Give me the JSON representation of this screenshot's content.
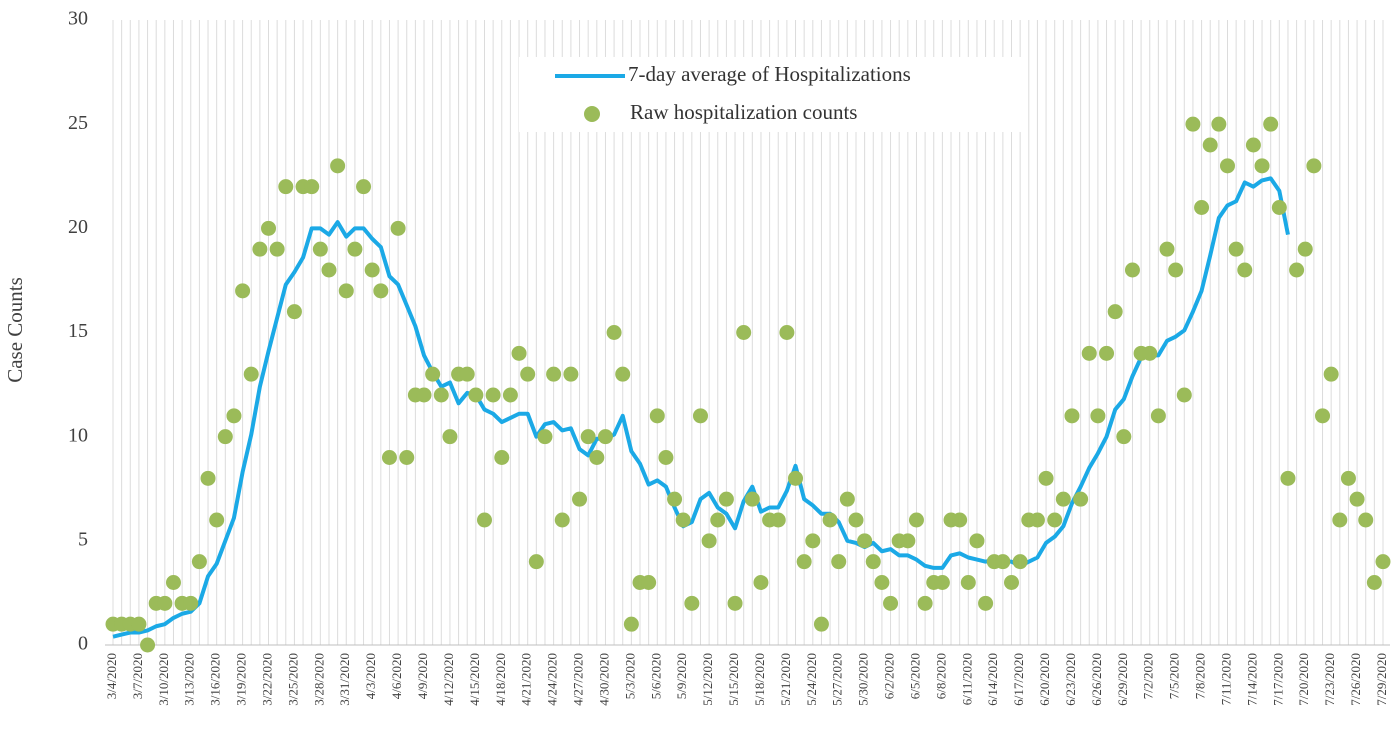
{
  "chart_data": {
    "type": "line",
    "y_axis_label": "Case Counts",
    "categories": [
      "3/4/2020",
      null,
      null,
      "3/7/2020",
      null,
      null,
      "3/10/2020",
      null,
      null,
      "3/13/2020",
      null,
      null,
      "3/16/2020",
      null,
      null,
      "3/19/2020",
      null,
      null,
      "3/22/2020",
      null,
      null,
      "3/25/2020",
      null,
      null,
      "3/28/2020",
      null,
      null,
      "3/31/2020",
      null,
      null,
      "4/3/2020",
      null,
      null,
      "4/6/2020",
      null,
      null,
      "4/9/2020",
      null,
      null,
      "4/12/2020",
      null,
      null,
      "4/15/2020",
      null,
      null,
      "4/18/2020",
      null,
      null,
      "4/21/2020",
      null,
      null,
      "4/24/2020",
      null,
      null,
      "4/27/2020",
      null,
      null,
      "4/30/2020",
      null,
      null,
      "5/3/2020",
      null,
      null,
      "5/6/2020",
      null,
      null,
      "5/9/2020",
      null,
      null,
      "5/12/2020",
      null,
      null,
      "5/15/2020",
      null,
      null,
      "5/18/2020",
      null,
      null,
      "5/21/2020",
      null,
      null,
      "5/24/2020",
      null,
      null,
      "5/27/2020",
      null,
      null,
      "5/30/2020",
      null,
      null,
      "6/2/2020",
      null,
      null,
      "6/5/2020",
      null,
      null,
      "6/8/2020",
      null,
      null,
      "6/11/2020",
      null,
      null,
      "6/14/2020",
      null,
      null,
      "6/17/2020",
      null,
      null,
      "6/20/2020",
      null,
      null,
      "6/23/2020",
      null,
      null,
      "6/26/2020",
      null,
      null,
      "6/29/2020",
      null,
      null,
      "7/2/2020",
      null,
      null,
      "7/5/2020",
      null,
      null,
      "7/8/2020",
      null,
      null,
      "7/11/2020",
      null,
      null,
      "7/14/2020",
      null,
      null,
      "7/17/2020",
      null,
      null,
      "7/20/2020",
      null,
      null,
      "7/23/2020",
      null,
      null,
      "7/26/2020",
      null,
      null,
      "7/29/2020"
    ],
    "series": [
      {
        "name": "7-day average of Hospitalizations",
        "type": "line",
        "color": "#1ba9e6",
        "values": [
          0.4,
          0.5,
          0.6,
          0.6,
          0.7,
          0.9,
          1.0,
          1.3,
          1.5,
          1.6,
          2.0,
          3.3,
          3.9,
          5.0,
          6.1,
          8.3,
          10.1,
          12.4,
          14.1,
          15.7,
          17.3,
          17.9,
          18.6,
          20.0,
          20.0,
          19.7,
          20.3,
          19.6,
          20.0,
          20.0,
          19.5,
          19.1,
          17.7,
          17.3,
          16.3,
          15.3,
          13.9,
          13.1,
          12.4,
          12.6,
          11.6,
          12.1,
          12.0,
          11.3,
          11.1,
          10.7,
          10.9,
          11.1,
          11.1,
          10.0,
          10.6,
          10.7,
          10.3,
          10.4,
          9.4,
          9.1,
          9.9,
          9.9,
          10.1,
          11.0,
          9.3,
          8.7,
          7.7,
          7.9,
          7.6,
          6.6,
          5.7,
          5.9,
          7.0,
          7.3,
          6.6,
          6.3,
          5.6,
          6.9,
          7.6,
          6.4,
          6.6,
          6.6,
          7.4,
          8.6,
          7.0,
          6.7,
          6.3,
          6.3,
          5.9,
          5.0,
          4.9,
          4.7,
          4.9,
          4.5,
          4.6,
          4.3,
          4.3,
          4.1,
          3.8,
          3.7,
          3.7,
          4.3,
          4.4,
          4.2,
          4.1,
          4.0,
          4.1,
          4.0,
          4.0,
          3.8,
          4.0,
          4.2,
          4.9,
          5.2,
          5.7,
          6.8,
          7.6,
          8.5,
          9.2,
          10.0,
          11.3,
          11.8,
          12.9,
          13.8,
          13.9,
          13.9,
          14.6,
          14.8,
          15.1,
          16.0,
          17.0,
          18.7,
          20.5,
          21.1,
          21.3,
          22.2,
          22.0,
          22.3,
          22.4,
          21.8,
          19.7,
          null,
          null,
          null,
          null,
          null,
          null,
          null,
          null,
          null,
          null,
          null
        ]
      },
      {
        "name": "Raw hospitalization counts",
        "type": "scatter",
        "color": "#9bbb59",
        "values": [
          1,
          1,
          1,
          1,
          0,
          2,
          2,
          3,
          2,
          2,
          4,
          8,
          6,
          10,
          11,
          17,
          13,
          19,
          20,
          19,
          22,
          16,
          22,
          22,
          19,
          18,
          23,
          17,
          19,
          22,
          18,
          17,
          9,
          20,
          9,
          12,
          12,
          13,
          12,
          10,
          13,
          13,
          12,
          6,
          12,
          9,
          12,
          14,
          13,
          4,
          10,
          13,
          6,
          13,
          7,
          10,
          9,
          10,
          15,
          13,
          1,
          3,
          3,
          11,
          9,
          7,
          6,
          2,
          11,
          5,
          6,
          7,
          2,
          15,
          7,
          3,
          6,
          6,
          15,
          8,
          4,
          5,
          1,
          6,
          4,
          7,
          6,
          5,
          4,
          3,
          2,
          5,
          5,
          6,
          2,
          3,
          3,
          6,
          6,
          3,
          5,
          2,
          4,
          4,
          3,
          4,
          6,
          6,
          8,
          6,
          7,
          11,
          7,
          14,
          11,
          14,
          16,
          10,
          18,
          14,
          14,
          11,
          19,
          18,
          12,
          25,
          21,
          24,
          25,
          23,
          19,
          18,
          24,
          23,
          25,
          21,
          8,
          18,
          19,
          23,
          11,
          13,
          6,
          8,
          7,
          6,
          3,
          4
        ]
      }
    ],
    "ylim": [
      0,
      30
    ],
    "yticks": [
      0,
      5,
      10,
      15,
      20,
      25,
      30
    ],
    "legend": "top-center"
  }
}
